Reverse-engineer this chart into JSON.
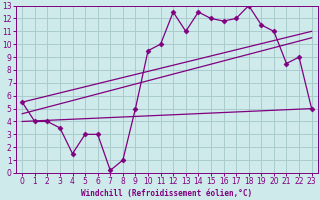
{
  "line1_x": [
    0,
    1,
    2,
    3,
    4,
    5,
    6,
    7,
    8,
    9,
    10,
    11,
    12,
    13,
    14,
    15,
    16,
    17,
    18,
    19,
    20,
    21,
    22,
    23
  ],
  "line1_y": [
    5.5,
    4.0,
    4.0,
    3.5,
    1.5,
    3.0,
    3.0,
    0.2,
    1.0,
    5.0,
    9.5,
    10.0,
    12.5,
    11.0,
    12.5,
    12.0,
    11.8,
    12.0,
    13.0,
    11.5,
    11.0,
    8.5,
    9.0,
    5.0
  ],
  "line2_x": [
    0,
    23
  ],
  "line2_y": [
    5.5,
    11.0
  ],
  "line3_x": [
    0,
    23
  ],
  "line3_y": [
    4.6,
    10.5
  ],
  "line4_x": [
    0,
    23
  ],
  "line4_y": [
    4.0,
    5.0
  ],
  "color": "#800080",
  "bg_color": "#ceeaea",
  "grid_color": "#aacccc",
  "xlabel": "Windchill (Refroidissement éolien,°C)",
  "xlim": [
    -0.5,
    23.5
  ],
  "ylim": [
    0,
    13
  ],
  "xticks": [
    0,
    1,
    2,
    3,
    4,
    5,
    6,
    7,
    8,
    9,
    10,
    11,
    12,
    13,
    14,
    15,
    16,
    17,
    18,
    19,
    20,
    21,
    22,
    23
  ],
  "yticks": [
    0,
    1,
    2,
    3,
    4,
    5,
    6,
    7,
    8,
    9,
    10,
    11,
    12,
    13
  ],
  "markersize": 2.5
}
